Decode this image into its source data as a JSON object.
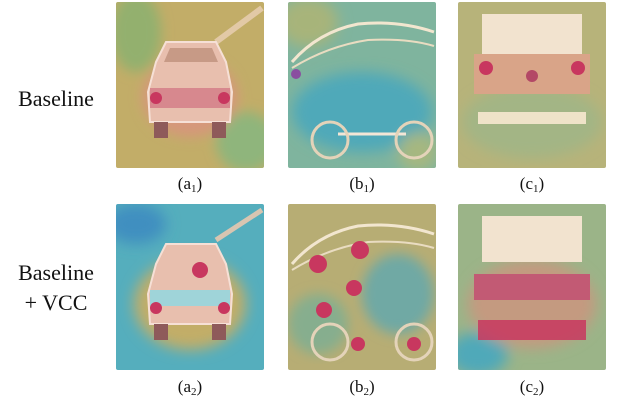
{
  "rows": [
    {
      "label_lines": [
        "Baseline"
      ],
      "captions": [
        {
          "letter": "a",
          "index": "1"
        },
        {
          "letter": "b",
          "index": "1"
        },
        {
          "letter": "c",
          "index": "1"
        }
      ]
    },
    {
      "label_lines": [
        "Baseline",
        "+ VCC"
      ],
      "captions": [
        {
          "letter": "a",
          "index": "2"
        },
        {
          "letter": "b",
          "index": "2"
        },
        {
          "letter": "c",
          "index": "2"
        }
      ]
    }
  ],
  "colors": {
    "heat_background": "#c2ad68",
    "heat_cool": "#4fa9b9",
    "heat_hot": "#c8375f",
    "car_highlight": "#f3cfc3"
  }
}
